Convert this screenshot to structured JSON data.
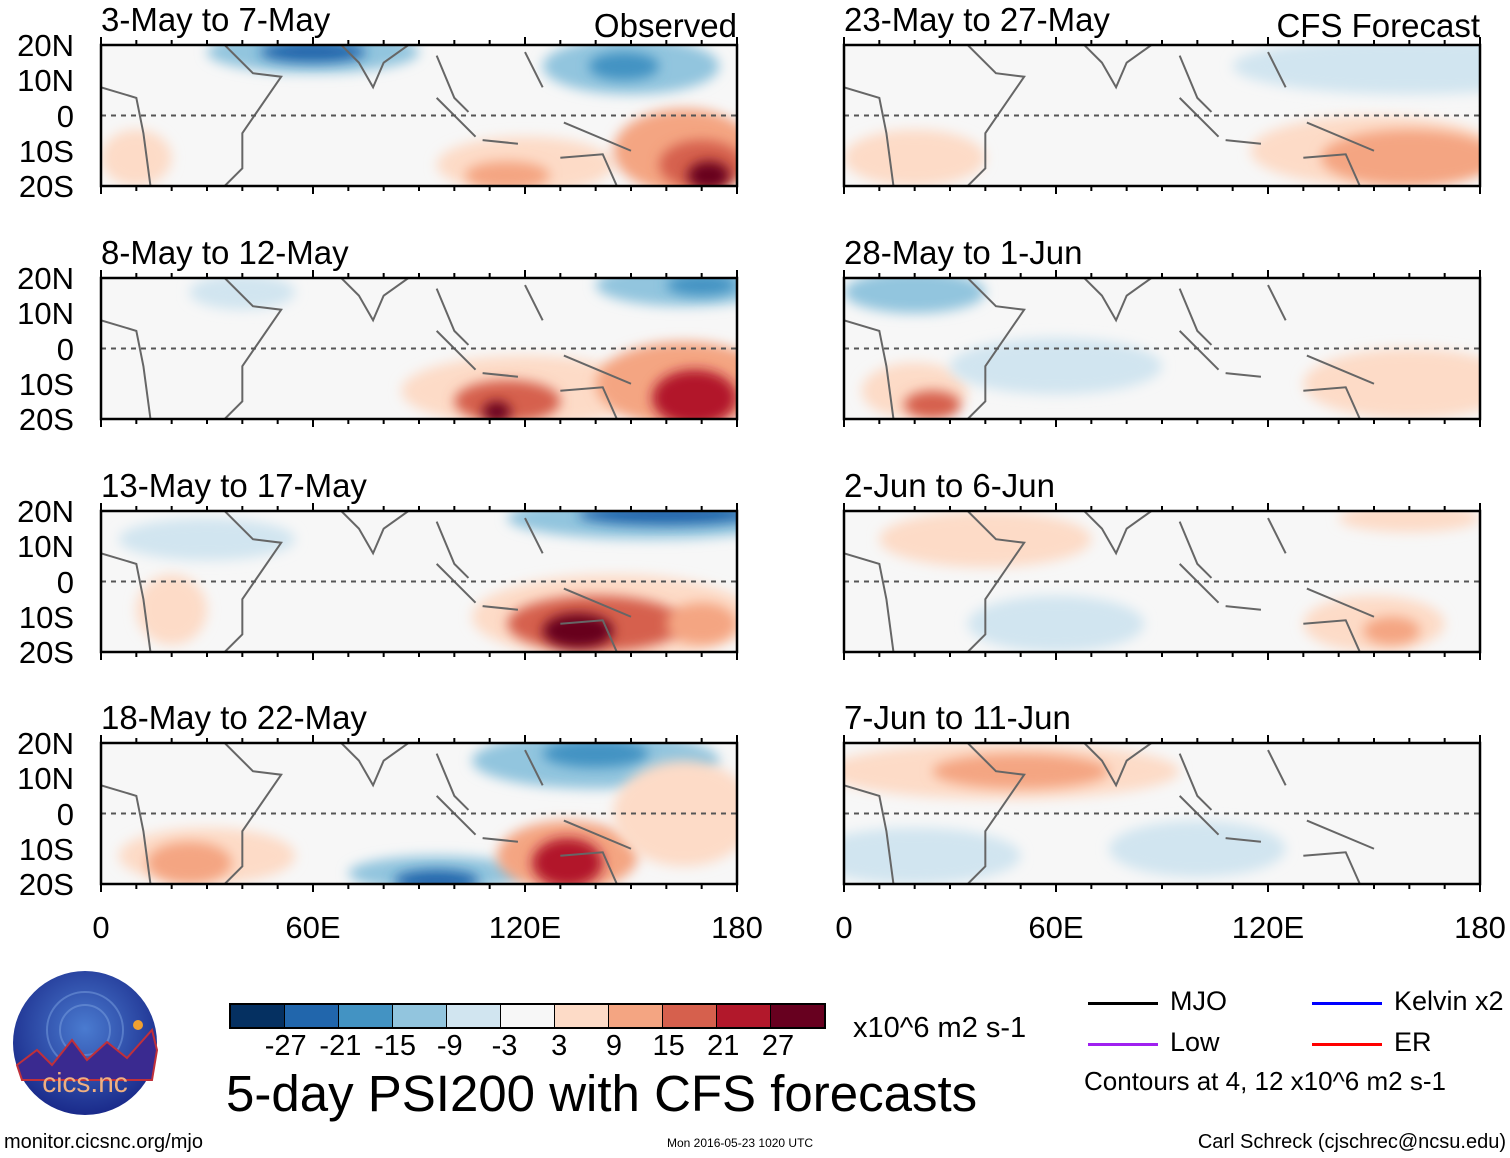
{
  "panels_left": [
    {
      "title": "3-May to 7-May",
      "tag": "Observed"
    },
    {
      "title": "8-May to 12-May"
    },
    {
      "title": "13-May to 17-May"
    },
    {
      "title": "18-May to 22-May"
    }
  ],
  "panels_right": [
    {
      "title": "23-May to 27-May",
      "tag": "CFS Forecast"
    },
    {
      "title": "28-May to 1-Jun"
    },
    {
      "title": "2-Jun to 6-Jun"
    },
    {
      "title": "7-Jun to 11-Jun"
    }
  ],
  "lat_labels": [
    "20N",
    "10N",
    "0",
    "10S",
    "20S"
  ],
  "lon_labels": [
    "0",
    "60E",
    "120E",
    "180"
  ],
  "colorbar": {
    "colors": [
      "#053061",
      "#2166ac",
      "#4393c3",
      "#92c5de",
      "#d1e5f0",
      "#f7f7f7",
      "#fddbc7",
      "#f4a582",
      "#d6604d",
      "#b2182b",
      "#67001f"
    ],
    "labels": [
      "-27",
      "-21",
      "-15",
      "-9",
      "-3",
      "3",
      "9",
      "15",
      "21",
      "27"
    ],
    "units": "x10^6 m2 s-1"
  },
  "title": "5-day PSI200 with CFS forecasts",
  "legend": [
    {
      "label": "MJO",
      "color": "#000000"
    },
    {
      "label": "Kelvin x2",
      "color": "#0000ff"
    },
    {
      "label": "Low",
      "color": "#a020f0"
    },
    {
      "label": "ER",
      "color": "#ff0000"
    }
  ],
  "contour_note": "Contours at 4, 12 x10^6 m2 s-1",
  "logo_text": "cics.nc",
  "logo_ring_text": "Cooperative Institute for Climate and Satellites",
  "footer": {
    "url": "monitor.cicsnc.org/mjo",
    "timestamp": "Mon 2016-05-23 1020 UTC",
    "author": "Carl Schreck (cjschrec@ncsu.edu)"
  }
}
